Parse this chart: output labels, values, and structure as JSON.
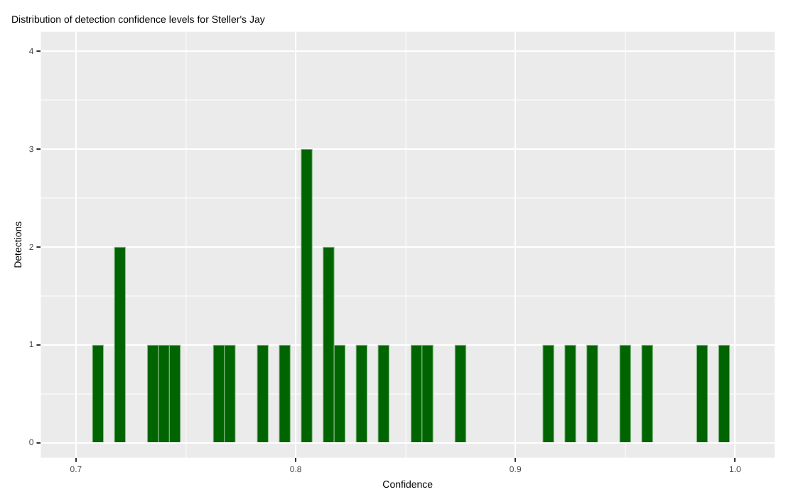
{
  "chart_data": {
    "type": "histogram",
    "title": "Distribution of detection confidence levels for Steller's Jay",
    "xlabel": "Confidence",
    "ylabel": "Detections",
    "color": "#006400",
    "bins": [
      0.7075,
      0.7125,
      0.7175,
      0.7225,
      0.7275,
      0.7325,
      0.7375,
      0.7425,
      0.7475,
      0.7525,
      0.7575,
      0.7625,
      0.7675,
      0.7725,
      0.7775,
      0.7825,
      0.7875,
      0.7925,
      0.7975,
      0.8025,
      0.8075,
      0.8125,
      0.8175,
      0.8225,
      0.8275,
      0.8325,
      0.8375,
      0.8425,
      0.8475,
      0.8525,
      0.8575,
      0.8625,
      0.8675,
      0.8725,
      0.8775,
      0.8825,
      0.8875,
      0.8925,
      0.8975,
      0.9025,
      0.9075,
      0.9125,
      0.9175,
      0.9225,
      0.9275,
      0.9325,
      0.9375,
      0.9425,
      0.9475,
      0.9525,
      0.9575,
      0.9625,
      0.9675,
      0.9725,
      0.9775,
      0.9825,
      0.9875,
      0.9925,
      0.9975
    ],
    "values": [
      1,
      0,
      2,
      0,
      0,
      1,
      1,
      1,
      0,
      0,
      0,
      1,
      1,
      0,
      0,
      1,
      0,
      1,
      0,
      3,
      0,
      2,
      1,
      0,
      1,
      0,
      1,
      0,
      0,
      1,
      1,
      0,
      0,
      1,
      0,
      0,
      0,
      0,
      0,
      0,
      0,
      1,
      0,
      1,
      0,
      1,
      0,
      0,
      1,
      0,
      1,
      0,
      0,
      0,
      0,
      1,
      0,
      1
    ],
    "xlim": [
      0.684,
      1.018
    ],
    "xticks": [
      0.7,
      {
        "value": 0.75,
        "label": null
      },
      0.8,
      {
        "value": 0.85,
        "label": null
      },
      0.9,
      {
        "value": 0.95,
        "label": null
      },
      {
        "value": 1,
        "label": "1.0"
      }
    ],
    "ylim": [
      -0.15,
      4.2
    ],
    "yticks": [
      0,
      {
        "value": 0.5,
        "label": null
      },
      1,
      {
        "value": 1.5,
        "label": null
      },
      2,
      {
        "value": 2.5,
        "label": null
      },
      3,
      {
        "value": 3.5,
        "label": null
      },
      4
    ],
    "grid": true,
    "legend": false
  }
}
